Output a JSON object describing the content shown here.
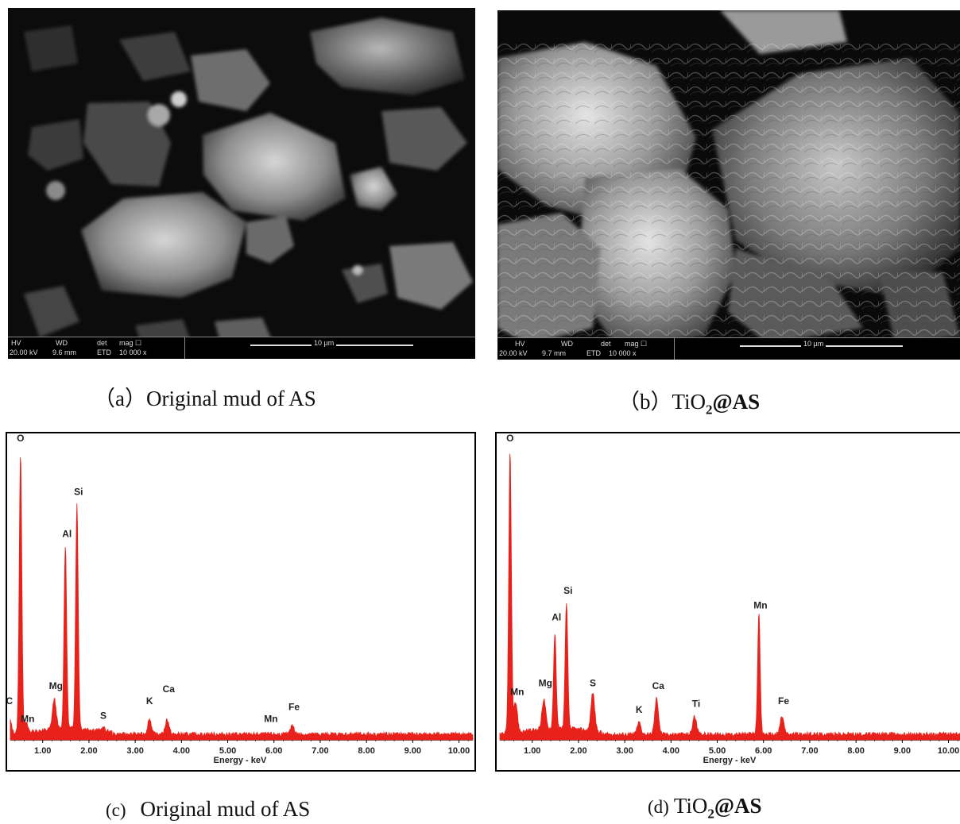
{
  "panels": {
    "a": {
      "caption_prefix": "（a）",
      "caption_text": "Original mud of AS",
      "sem_bar": {
        "hv_label": "HV",
        "hv_value": "20.00 kV",
        "wd_label": "WD",
        "wd_value": "9.6 mm",
        "det_label": "det",
        "det_value": "ETD",
        "mag_label": "mag ☐",
        "mag_value": "10 000 x",
        "scale": "10 µm"
      }
    },
    "b": {
      "caption_prefix": "（b）",
      "caption_text_main": "TiO",
      "caption_sub": "2",
      "caption_text_bold": "@AS",
      "sem_bar": {
        "hv_label": "HV",
        "hv_value": "20.00 kV",
        "wd_label": "WD",
        "wd_value": "9.7 mm",
        "det_label": "det",
        "det_value": "ETD",
        "mag_label": "mag ☐",
        "mag_value": "10 000 x",
        "scale": "10 µm"
      }
    },
    "c": {
      "caption_prefix": "(c)",
      "caption_text": "Original mud of AS"
    },
    "d": {
      "caption_prefix": "(d)",
      "caption_text_main": "TiO",
      "caption_sub": "2",
      "caption_text_bold": "@AS"
    }
  },
  "chart_data": [
    {
      "type": "line",
      "xlabel": "Energy - keV",
      "ylabel": "",
      "xlim": [
        0.3,
        10.3
      ],
      "ylim": [
        0,
        1.0
      ],
      "x_ticks": [
        "1.00",
        "2.00",
        "3.00",
        "4.00",
        "5.00",
        "6.00",
        "7.00",
        "8.00",
        "9.00",
        "10.00"
      ],
      "x_tick_values": [
        1,
        2,
        3,
        4,
        5,
        6,
        7,
        8,
        9,
        10
      ],
      "color": "#e8211b",
      "peaks": [
        {
          "label": "C",
          "x": 0.28,
          "height": 0.05,
          "label_height": 0.12
        },
        {
          "label": "O",
          "x": 0.52,
          "height": 0.93,
          "label_height": 1.0
        },
        {
          "label": "Mn",
          "x": 0.64,
          "height": 0.03,
          "label_height": 0.06
        },
        {
          "label": "Mg",
          "x": 1.25,
          "height": 0.1,
          "label_height": 0.17
        },
        {
          "label": "Al",
          "x": 1.49,
          "height": 0.61,
          "label_height": 0.68
        },
        {
          "label": "Si",
          "x": 1.74,
          "height": 0.75,
          "label_height": 0.82
        },
        {
          "label": "S",
          "x": 2.31,
          "height": 0.01,
          "label_height": 0.07
        },
        {
          "label": "K",
          "x": 3.31,
          "height": 0.05,
          "label_height": 0.12
        },
        {
          "label": "Ca",
          "x": 3.69,
          "height": 0.05,
          "label_height": 0.16
        },
        {
          "label": "Mn",
          "x": 5.9,
          "height": 0.0,
          "label_height": 0.06
        },
        {
          "label": "Fe",
          "x": 6.4,
          "height": 0.03,
          "label_height": 0.1
        }
      ]
    },
    {
      "type": "line",
      "xlabel": "Energy - keV",
      "ylabel": "",
      "xlim": [
        0.3,
        10.3
      ],
      "ylim": [
        0,
        1.0
      ],
      "x_ticks": [
        "1.00",
        "2.00",
        "3.00",
        "4.00",
        "5.00",
        "6.00",
        "7.00",
        "8.00",
        "9.00",
        "10.00"
      ],
      "x_tick_values": [
        1,
        2,
        3,
        4,
        5,
        6,
        7,
        8,
        9,
        10
      ],
      "color": "#e8211b",
      "peaks": [
        {
          "label": "O",
          "x": 0.52,
          "height": 0.94,
          "label_height": 1.0
        },
        {
          "label": "Mn",
          "x": 0.64,
          "height": 0.1,
          "label_height": 0.15
        },
        {
          "label": "Mg",
          "x": 1.25,
          "height": 0.1,
          "label_height": 0.18
        },
        {
          "label": "Al",
          "x": 1.49,
          "height": 0.32,
          "label_height": 0.4
        },
        {
          "label": "Si",
          "x": 1.74,
          "height": 0.42,
          "label_height": 0.49
        },
        {
          "label": "S",
          "x": 2.31,
          "height": 0.13,
          "label_height": 0.18
        },
        {
          "label": "K",
          "x": 3.31,
          "height": 0.04,
          "label_height": 0.09
        },
        {
          "label": "Ca",
          "x": 3.69,
          "height": 0.12,
          "label_height": 0.17
        },
        {
          "label": "Ti",
          "x": 4.51,
          "height": 0.06,
          "label_height": 0.11
        },
        {
          "label": "Mn",
          "x": 5.9,
          "height": 0.4,
          "label_height": 0.44
        },
        {
          "label": "Fe",
          "x": 6.4,
          "height": 0.06,
          "label_height": 0.12
        }
      ]
    }
  ]
}
